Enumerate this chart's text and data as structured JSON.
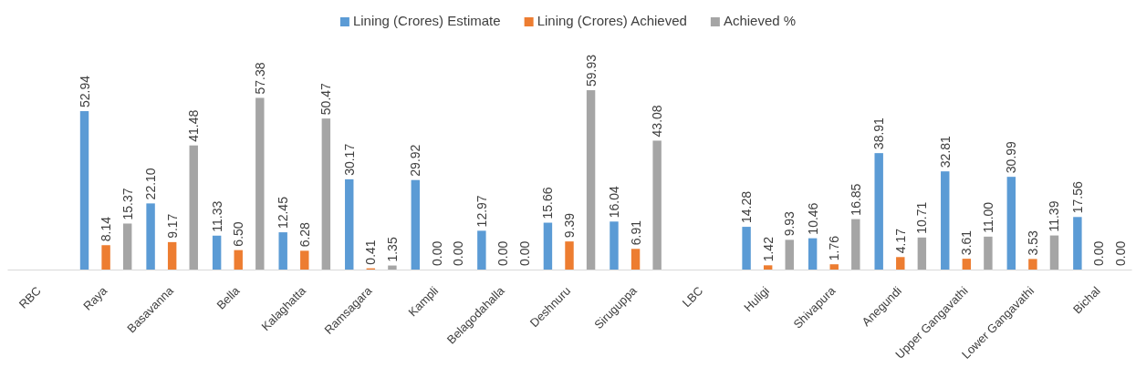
{
  "chart_data": {
    "type": "bar",
    "categories": [
      "RBC",
      "Raya",
      "Basavanna",
      "Bella",
      "Kalaghatta",
      "Ramsagara",
      "Kampli",
      "Belagodahalla",
      "Deshnuru",
      "Siruguppa",
      "LBC",
      "Huligi",
      "Shivapura",
      "Anegundi",
      "Upper Gangavathi",
      "Lower Gangavathi",
      "Bichal"
    ],
    "legend": "top",
    "series": [
      {
        "name": "Lining (Crores) Estimate",
        "color": "#5b9bd5",
        "values": [
          null,
          52.94,
          22.1,
          11.33,
          12.45,
          30.17,
          29.92,
          12.97,
          15.66,
          16.04,
          null,
          14.28,
          10.46,
          38.91,
          32.81,
          30.99,
          17.56
        ],
        "value_labels": [
          null,
          "52.94",
          "22.10",
          "11.33",
          "12.45",
          "30.17",
          "29.92",
          "12.97",
          "15.66",
          "16.04",
          null,
          "14.28",
          "10.46",
          "38.91",
          "32.81",
          "30.99",
          "17.56"
        ]
      },
      {
        "name": "Lining (Crores) Achieved",
        "color": "#ed7d31",
        "values": [
          null,
          8.14,
          9.17,
          6.5,
          6.28,
          0.41,
          0,
          0,
          9.39,
          6.91,
          null,
          1.42,
          1.76,
          4.17,
          3.61,
          3.53,
          0
        ],
        "value_labels": [
          null,
          "8.14",
          "9.17",
          "6.50",
          "6.28",
          "0.41",
          "0.00",
          "0.00",
          "9.39",
          "6.91",
          null,
          "1.42",
          "1.76",
          "4.17",
          "3.61",
          "3.53",
          "0.00"
        ]
      },
      {
        "name": "Achieved  %",
        "color": "#a5a5a5",
        "values": [
          null,
          15.37,
          41.48,
          57.38,
          50.47,
          1.35,
          0,
          0,
          59.93,
          43.08,
          null,
          9.93,
          16.85,
          10.71,
          11.0,
          11.39,
          0
        ],
        "value_labels": [
          null,
          "15.37",
          "41.48",
          "57.38",
          "50.47",
          "1.35",
          "0.00",
          "0.00",
          "59.93",
          "43.08",
          null,
          "9.93",
          "16.85",
          "10.71",
          "11.00",
          "11.39",
          "0.00"
        ]
      }
    ]
  }
}
